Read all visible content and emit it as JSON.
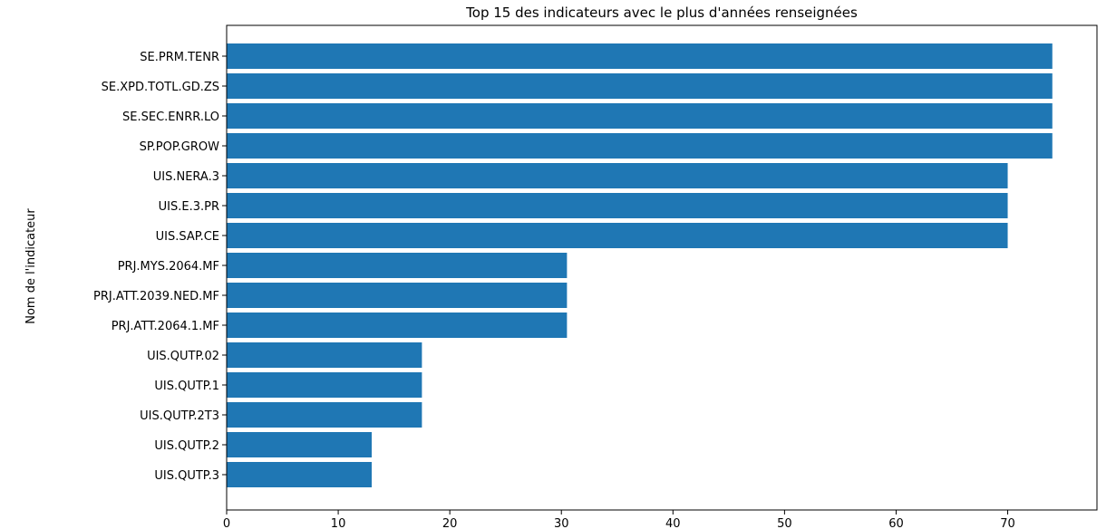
{
  "chart_data": {
    "type": "bar",
    "orientation": "horizontal",
    "title": "Top 15 des indicateurs avec le plus d'années renseignées",
    "xlabel": "",
    "ylabel": "Nom de l'indicateur",
    "xlim": [
      0,
      78
    ],
    "xticks": [
      0,
      10,
      20,
      30,
      40,
      50,
      60,
      70
    ],
    "grid": false,
    "bar_color": "#1f77b4",
    "categories": [
      "SE.PRM.TENR",
      "SE.XPD.TOTL.GD.ZS",
      "SE.SEC.ENRR.LO",
      "SP.POP.GROW",
      "UIS.NERA.3",
      "UIS.E.3.PR",
      "UIS.SAP.CE",
      "PRJ.MYS.2064.MF",
      "PRJ.ATT.2039.NED.MF",
      "PRJ.ATT.2064.1.MF",
      "UIS.QUTP.02",
      "UIS.QUTP.1",
      "UIS.QUTP.2T3",
      "UIS.QUTP.2",
      "UIS.QUTP.3"
    ],
    "values": [
      74,
      74,
      74,
      74,
      70,
      70,
      70,
      30.5,
      30.5,
      30.5,
      17.5,
      17.5,
      17.5,
      13,
      13
    ]
  }
}
